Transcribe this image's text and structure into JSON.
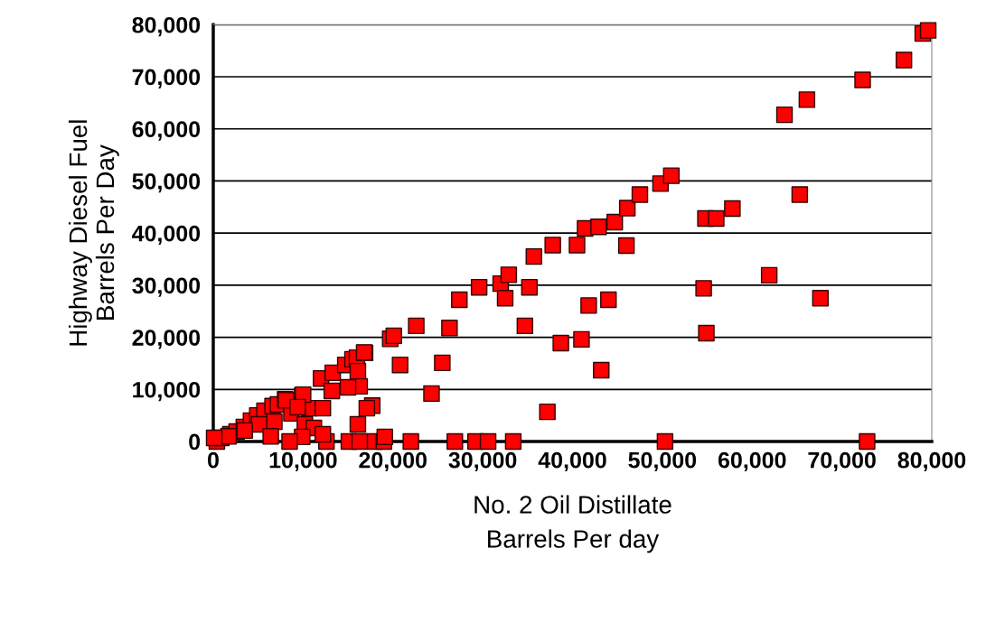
{
  "chart_data": {
    "type": "scatter",
    "xlabel": "No. 2 Oil Distillate\nBarrels Per day",
    "ylabel": "Highway Diesel Fuel\nBarrels Per Day",
    "xlim": [
      0,
      80000
    ],
    "ylim": [
      0,
      80000
    ],
    "xticks": [
      {
        "value": 0,
        "label": "0"
      },
      {
        "value": 10000,
        "label": "10,000"
      },
      {
        "value": 20000,
        "label": "20,000"
      },
      {
        "value": 30000,
        "label": "30,000"
      },
      {
        "value": 40000,
        "label": "40,000"
      },
      {
        "value": 50000,
        "label": "50,000"
      },
      {
        "value": 60000,
        "label": "60,000"
      },
      {
        "value": 70000,
        "label": "70,000"
      },
      {
        "value": 80000,
        "label": "80,000"
      }
    ],
    "yticks": [
      {
        "value": 0,
        "label": "0"
      },
      {
        "value": 10000,
        "label": "10,000"
      },
      {
        "value": 20000,
        "label": "20,000"
      },
      {
        "value": 30000,
        "label": "30,000"
      },
      {
        "value": 40000,
        "label": "40,000"
      },
      {
        "value": 50000,
        "label": "50,000"
      },
      {
        "value": 60000,
        "label": "60,000"
      },
      {
        "value": 70000,
        "label": "70,000"
      },
      {
        "value": 80000,
        "label": "80,000"
      }
    ],
    "grid": "y",
    "marker": "square",
    "legend": false,
    "series": [
      {
        "color": "#ff0000",
        "x": [
          400,
          900,
          1900,
          2600,
          3400,
          4200,
          4900,
          5700,
          6600,
          7200,
          8000,
          8700,
          9900,
          10700,
          12000,
          13300,
          14700,
          15500,
          16000,
          16900,
          19700,
          20100,
          22600,
          27400,
          29600,
          32000,
          32900,
          35700,
          37800,
          41400,
          42900,
          44700,
          46100,
          47500,
          49800,
          51000,
          63600,
          66100,
          72300,
          76900,
          79000,
          79600,
          17700,
          16300,
          20800,
          24300,
          25500,
          26300,
          32500,
          35200,
          34700,
          38700,
          41000,
          41800,
          44000,
          46000,
          40500,
          37200,
          43200,
          54600,
          54900,
          54800,
          56000,
          57800,
          61900,
          65300,
          67600,
          18000,
          22000,
          26900,
          29200,
          30600,
          33400,
          50300,
          72800,
          12600,
          15100,
          16300,
          19000,
          16800,
          16100,
          15000,
          13200,
          10000,
          8100,
          12200,
          9400,
          6800,
          5100,
          3500,
          1700,
          10200,
          11200,
          12200,
          6400,
          9900,
          16100,
          17100,
          19100,
          8500,
          100
        ],
        "values": [
          0,
          700,
          1400,
          1900,
          2800,
          4000,
          5000,
          5900,
          6800,
          7100,
          8100,
          5400,
          8800,
          6400,
          12100,
          13200,
          14700,
          15800,
          16100,
          17000,
          19700,
          20300,
          22200,
          27200,
          29600,
          30300,
          32000,
          35500,
          37700,
          40900,
          41200,
          42100,
          44800,
          47400,
          49500,
          51000,
          62700,
          65600,
          69400,
          73200,
          78300,
          78900,
          6900,
          10600,
          14700,
          9200,
          15100,
          21800,
          27500,
          29600,
          22200,
          18900,
          19600,
          26100,
          27200,
          37600,
          37700,
          5700,
          13700,
          29400,
          20800,
          42800,
          42800,
          44700,
          31900,
          47400,
          27500,
          0,
          0,
          0,
          0,
          0,
          0,
          0,
          0,
          0,
          0,
          0,
          0,
          17100,
          13500,
          10400,
          9700,
          9000,
          7900,
          6400,
          6600,
          3800,
          3300,
          2100,
          1000,
          3300,
          2600,
          1400,
          1000,
          900,
          3300,
          6400,
          900,
          0,
          700
        ]
      }
    ]
  }
}
